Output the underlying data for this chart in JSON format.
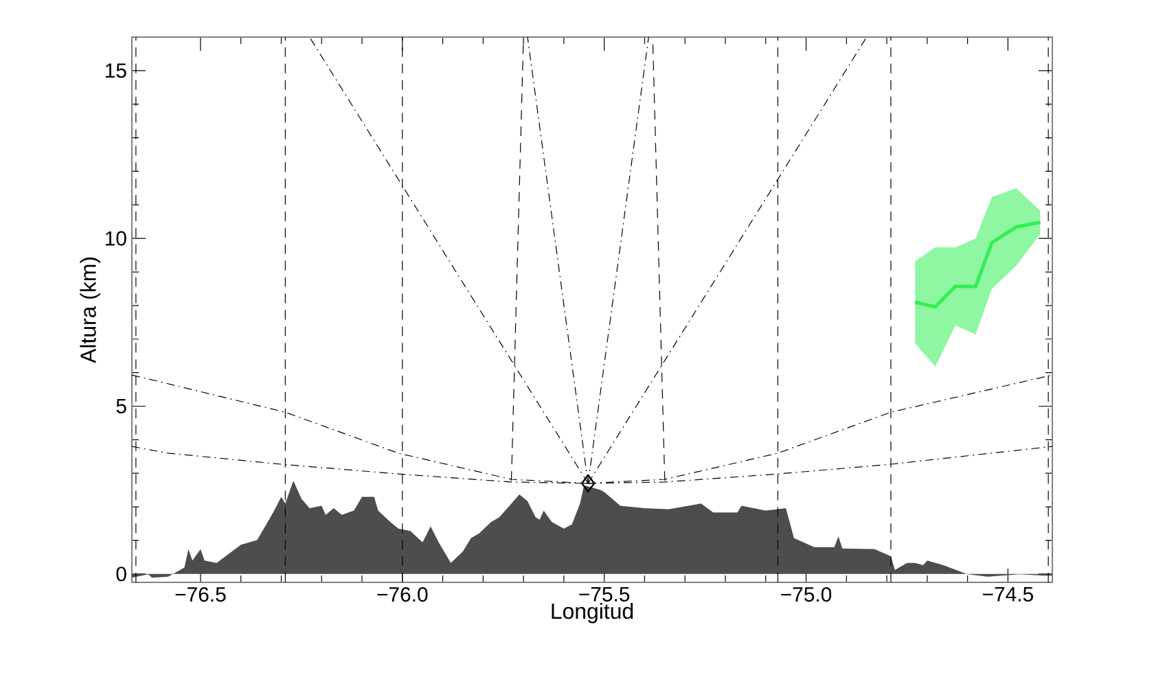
{
  "chart_data": {
    "type": "line",
    "xlabel": "Longitud",
    "ylabel": "Altura (km)",
    "xlim": [
      -76.67,
      -74.39
    ],
    "ylim": [
      -0.25,
      16
    ],
    "xticks": [
      {
        "value": -76.5,
        "label": "−76.5"
      },
      {
        "value": -76.0,
        "label": "−76.0"
      },
      {
        "value": -75.5,
        "label": "−75.5"
      },
      {
        "value": -75.0,
        "label": "−75.0"
      },
      {
        "value": -74.5,
        "label": "−74.5"
      }
    ],
    "yticks": [
      0,
      5,
      10,
      15
    ],
    "ref_lines": [
      {
        "axis": "x",
        "value": -76.66,
        "color": "#000000",
        "line_style": "dashed"
      },
      {
        "axis": "x",
        "value": -76.29,
        "color": "#000000",
        "line_style": "dashed"
      },
      {
        "axis": "x",
        "value": -76.0,
        "color": "#000000",
        "line_style": "dashed"
      },
      {
        "axis": "x",
        "value": -75.07,
        "color": "#000000",
        "line_style": "dashed"
      },
      {
        "axis": "x",
        "value": -74.79,
        "color": "#000000",
        "line_style": "dashed"
      },
      {
        "axis": "x",
        "value": -74.4,
        "color": "#000000",
        "line_style": "dashed"
      }
    ],
    "series": [
      {
        "type": "area",
        "color": "#4d4d4d",
        "x": [
          -76.67,
          -76.63,
          -76.62,
          -76.58,
          -76.54,
          -76.53,
          -76.52,
          -76.5,
          -76.49,
          -76.46,
          -76.43,
          -76.4,
          -76.36,
          -76.34,
          -76.32,
          -76.3,
          -76.29,
          -76.27,
          -76.25,
          -76.23,
          -76.2,
          -76.19,
          -76.17,
          -76.15,
          -76.12,
          -76.1,
          -76.07,
          -76.06,
          -76.03,
          -76.01,
          -75.98,
          -75.95,
          -75.93,
          -75.91,
          -75.88,
          -75.85,
          -75.83,
          -75.81,
          -75.78,
          -75.76,
          -75.74,
          -75.71,
          -75.69,
          -75.67,
          -75.66,
          -75.65,
          -75.63,
          -75.6,
          -75.58,
          -75.56,
          -75.55,
          -75.51,
          -75.5,
          -75.46,
          -75.4,
          -75.34,
          -75.26,
          -75.23,
          -75.17,
          -75.16,
          -75.1,
          -75.05,
          -75.03,
          -74.98,
          -74.93,
          -74.92,
          -74.91,
          -74.83,
          -74.79,
          -74.78,
          -74.75,
          -74.73,
          -74.71,
          -74.7,
          -74.66,
          -74.6,
          -74.55,
          -74.47,
          -74.41,
          -74.39
        ],
        "values": [
          -0.11,
          -0.01,
          -0.11,
          -0.08,
          0.19,
          0.74,
          0.4,
          0.74,
          0.4,
          0.33,
          0.6,
          0.87,
          1.01,
          1.42,
          1.83,
          2.3,
          2.1,
          2.78,
          2.24,
          1.96,
          2.03,
          1.76,
          1.96,
          1.76,
          1.89,
          2.3,
          2.3,
          1.89,
          1.55,
          1.35,
          1.28,
          0.94,
          1.42,
          0.94,
          0.33,
          0.67,
          1.07,
          1.21,
          1.55,
          1.69,
          1.96,
          2.37,
          2.17,
          1.69,
          1.62,
          1.89,
          1.55,
          1.35,
          1.48,
          2.1,
          2.64,
          2.51,
          2.44,
          2.03,
          1.96,
          1.93,
          2.1,
          1.83,
          1.83,
          2.03,
          1.89,
          1.96,
          1.07,
          0.8,
          0.8,
          1.12,
          0.76,
          0.74,
          0.53,
          0.12,
          0.33,
          0.33,
          0.26,
          0.4,
          0.26,
          -0.01,
          -0.08,
          -0.01,
          -0.05,
          -0.05
        ]
      },
      {
        "color": "#000000",
        "line_style": "dashdot",
        "x": [
          -76.67,
          -76.58,
          -76.3,
          -76.01,
          -75.73,
          -75.54
        ],
        "values": [
          3.8,
          3.6,
          3.27,
          2.98,
          2.74,
          2.7
        ]
      },
      {
        "color": "#000000",
        "line_style": "dashdot",
        "x": [
          -76.67,
          -76.29,
          -76.01,
          -75.73,
          -75.54
        ],
        "values": [
          5.93,
          4.82,
          3.6,
          2.82,
          2.7
        ]
      },
      {
        "color": "#000000",
        "line_style": "dashdot",
        "x": [
          -75.54,
          -75.35,
          -75.07,
          -74.79,
          -74.39
        ],
        "values": [
          2.7,
          2.74,
          2.98,
          3.27,
          3.8
        ]
      },
      {
        "color": "#000000",
        "line_style": "dashdot",
        "x": [
          -75.54,
          -75.35,
          -75.07,
          -74.79,
          -74.39
        ],
        "values": [
          2.7,
          2.82,
          3.6,
          4.82,
          5.93
        ]
      },
      {
        "color": "#000000",
        "line_style": "dashdot",
        "x": [
          -75.54,
          -76.23
        ],
        "values": [
          2.7,
          16
        ]
      },
      {
        "color": "#000000",
        "line_style": "dashdot",
        "x": [
          -75.54,
          -74.85
        ],
        "values": [
          2.7,
          16
        ]
      },
      {
        "color": "#000000",
        "line_style": "dashdot",
        "x": [
          -75.54,
          -75.69
        ],
        "values": [
          2.7,
          16
        ]
      },
      {
        "color": "#000000",
        "line_style": "dashdot",
        "x": [
          -75.54,
          -75.39
        ],
        "values": [
          2.7,
          16
        ]
      },
      {
        "color": "#000000",
        "line_style": "dashed",
        "x": [
          -75.73,
          -75.7
        ],
        "values": [
          2.78,
          16
        ]
      },
      {
        "color": "#000000",
        "line_style": "dashed",
        "x": [
          -75.35,
          -75.38
        ],
        "values": [
          2.78,
          16
        ]
      },
      {
        "color": "#33ee55",
        "x": [
          -74.73,
          -74.68,
          -74.63,
          -74.58,
          -74.54,
          -74.48,
          -74.42
        ],
        "values": [
          8.1,
          7.96,
          8.57,
          8.57,
          9.87,
          10.34,
          10.48
        ],
        "lower": [
          6.87,
          6.18,
          7.41,
          7.14,
          8.5,
          9.18,
          10.13
        ],
        "upper": [
          9.32,
          9.73,
          9.73,
          10.0,
          11.23,
          11.5,
          10.82
        ]
      },
      {
        "type": "scatter",
        "color": "#000000",
        "marker": "diamond",
        "x": [
          -75.54
        ],
        "values": [
          2.7
        ]
      }
    ]
  }
}
